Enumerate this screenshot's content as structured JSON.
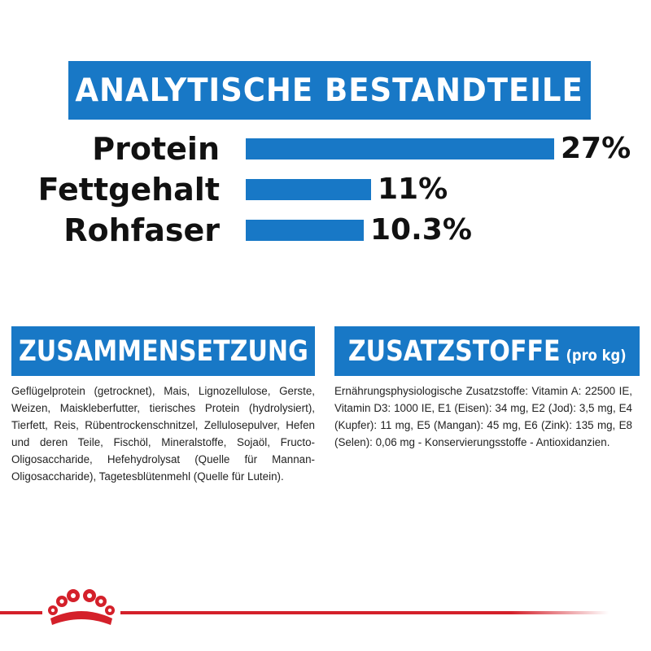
{
  "banner": {
    "title": "ANALYTISCHE BESTANDTEILE"
  },
  "chart_data": {
    "type": "bar",
    "categories": [
      "Protein",
      "Fettgehalt",
      "Rohfaser"
    ],
    "values": [
      27,
      11,
      10.3
    ],
    "value_labels": [
      "27%",
      "11%",
      "10.3%"
    ],
    "title": "ANALYTISCHE BESTANDTEILE",
    "xlabel": "",
    "ylabel": "",
    "grid": false
  },
  "composition": {
    "title": "ZUSAMMENSETZUNG",
    "text": "Geflügelprotein (getrocknet), Mais, Lignozellulose, Gerste, Weizen, Maiskleberfutter, tierisches Protein (hydrolysiert), Tierfett, Reis, Rübentrockenschnitzel, Zellulosepulver, Hefen und deren Teile, Fischöl, Mineralstoffe, Sojaöl, Fructo-Oligosaccharide, Hefehydrolysat (Quelle für Mannan-Oligosaccharide), Tagetesblütenmehl (Quelle für Lutein)."
  },
  "additives": {
    "title": "ZUSATZSTOFFE",
    "subtitle": "(pro kg)",
    "text": "Ernährungsphysiologische Zusatzstoffe: Vitamin A: 22500 IE, Vitamin D3: 1000 IE, E1 (Eisen): 34 mg, E2 (Jod): 3,5 mg, E4 (Kupfer): 11 mg, E5 (Mangan): 45 mg, E6 (Zink): 135 mg, E8 (Selen): 0,06 mg - Konservierungsstoffe - Antioxidanzien."
  },
  "colors": {
    "brand_blue": "#1878c6",
    "brand_red": "#d4202a"
  },
  "footer": {
    "logo_icon": "royal-canin-crown-icon"
  }
}
